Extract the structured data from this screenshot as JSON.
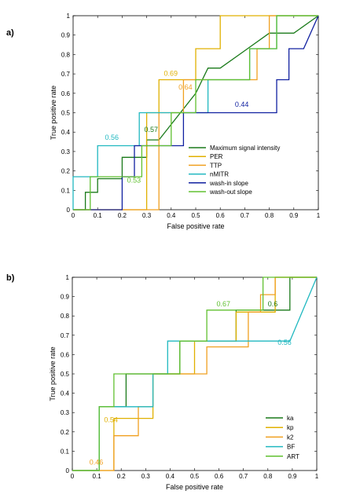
{
  "chart_data": [
    {
      "type": "line",
      "panel_label": "a)",
      "xlabel": "False positive rate",
      "ylabel": "True positive rate",
      "xlim": [
        0,
        1
      ],
      "ylim": [
        0,
        1
      ],
      "xticks": [
        "0",
        "0.1",
        "0.2",
        "0.3",
        "0.4",
        "0.5",
        "0.6",
        "0.7",
        "0.8",
        "0.9",
        "1"
      ],
      "yticks": [
        "0",
        "0.1",
        "0.2",
        "0.3",
        "0.4",
        "0.5",
        "0.6",
        "0.7",
        "0.8",
        "0.9",
        "1"
      ],
      "grid": false,
      "legend_position": "bottom-right",
      "series": [
        {
          "name": "Maximum signal intensity",
          "color": "#1a7a1a",
          "x": [
            0,
            0.05,
            0.05,
            0.1,
            0.1,
            0.2,
            0.2,
            0.3,
            0.3,
            0.35,
            0.35,
            0.5,
            0.5,
            0.55,
            0.55,
            0.6,
            0.6,
            0.7,
            0.7,
            0.8,
            0.8,
            0.9,
            0.9,
            1,
            1
          ],
          "y": [
            0,
            0,
            0.09,
            0.09,
            0.16,
            0.16,
            0.27,
            0.27,
            0.36,
            0.36,
            0.36,
            0.6,
            0.6,
            0.73,
            0.73,
            0.73,
            0.73,
            0.82,
            0.82,
            0.91,
            0.91,
            0.91,
            0.91,
            1,
            1
          ]
        },
        {
          "name": "PER",
          "color": "#e0b000",
          "x": [
            0,
            0.3,
            0.3,
            0.35,
            0.35,
            0.45,
            0.45,
            0.5,
            0.5,
            0.55,
            0.55,
            0.6,
            0.6,
            0.65,
            0.65,
            1
          ],
          "y": [
            0,
            0,
            0.5,
            0.5,
            0.67,
            0.67,
            0.67,
            0.67,
            0.83,
            0.83,
            0.83,
            0.83,
            1,
            1,
            1,
            1
          ]
        },
        {
          "name": "TTP",
          "color": "#f0a020",
          "x": [
            0,
            0.35,
            0.35,
            0.45,
            0.45,
            0.65,
            0.65,
            0.75,
            0.75,
            0.8,
            0.8,
            1
          ],
          "y": [
            0,
            0,
            0.5,
            0.5,
            0.67,
            0.67,
            0.67,
            0.67,
            0.83,
            0.83,
            1,
            1
          ]
        },
        {
          "name": "nMITR",
          "color": "#20b8c0",
          "x": [
            0,
            0,
            0.1,
            0.1,
            0.27,
            0.27,
            0.33,
            0.33,
            0.55,
            0.55,
            0.61,
            0.61,
            0.72,
            0.72,
            0.83,
            0.83,
            1
          ],
          "y": [
            0,
            0.17,
            0.17,
            0.33,
            0.33,
            0.5,
            0.5,
            0.5,
            0.5,
            0.67,
            0.67,
            0.67,
            0.67,
            0.83,
            0.83,
            1,
            1
          ]
        },
        {
          "name": "wash-in slope",
          "color": "#1020a0",
          "x": [
            0,
            0.2,
            0.2,
            0.25,
            0.25,
            0.45,
            0.45,
            0.5,
            0.5,
            0.73,
            0.73,
            0.83,
            0.83,
            0.88,
            0.88,
            0.94,
            0.94,
            1
          ],
          "y": [
            0,
            0,
            0.17,
            0.17,
            0.33,
            0.33,
            0.5,
            0.5,
            0.5,
            0.5,
            0.5,
            0.5,
            0.67,
            0.67,
            0.83,
            0.83,
            0.83,
            1
          ]
        },
        {
          "name": "wash-out slope",
          "color": "#60c030",
          "x": [
            0,
            0.07,
            0.07,
            0.17,
            0.17,
            0.28,
            0.28,
            0.4,
            0.4,
            0.5,
            0.5,
            0.6,
            0.6,
            0.72,
            0.72,
            0.83,
            0.83,
            0.94,
            0.94,
            1
          ],
          "y": [
            0,
            0,
            0.17,
            0.17,
            0.17,
            0.17,
            0.33,
            0.33,
            0.5,
            0.5,
            0.67,
            0.67,
            0.67,
            0.67,
            0.83,
            0.83,
            1,
            1,
            1,
            1
          ]
        }
      ],
      "annotations": [
        {
          "text": "0.69",
          "x": 0.37,
          "y": 0.69,
          "color": "#e0b000"
        },
        {
          "text": "0.64",
          "x": 0.43,
          "y": 0.62,
          "color": "#f0a020"
        },
        {
          "text": "0.57",
          "x": 0.29,
          "y": 0.4,
          "color": "#1a7a1a"
        },
        {
          "text": "0.56",
          "x": 0.13,
          "y": 0.36,
          "color": "#20b8c0"
        },
        {
          "text": "0.53",
          "x": 0.22,
          "y": 0.14,
          "color": "#60c030"
        },
        {
          "text": "0.44",
          "x": 0.66,
          "y": 0.53,
          "color": "#1020a0"
        }
      ]
    },
    {
      "type": "line",
      "panel_label": "b)",
      "xlabel": "False positive rate",
      "ylabel": "True positive rate",
      "xlim": [
        0,
        1
      ],
      "ylim": [
        0,
        1
      ],
      "xticks": [
        "0",
        "0.1",
        "0.2",
        "0.3",
        "0.4",
        "0.5",
        "0.6",
        "0.7",
        "0.8",
        "0.9",
        "1"
      ],
      "yticks": [
        "0",
        "0.1",
        "0.2",
        "0.3",
        "0.4",
        "0.5",
        "0.6",
        "0.7",
        "0.8",
        "0.9",
        "1"
      ],
      "grid": false,
      "legend_position": "bottom-right",
      "series": [
        {
          "name": "ka",
          "color": "#1a7a1a",
          "x": [
            0,
            0.11,
            0.11,
            0.22,
            0.22,
            0.44,
            0.44,
            0.55,
            0.55,
            0.67,
            0.67,
            0.78,
            0.78,
            0.89,
            0.89,
            1
          ],
          "y": [
            0,
            0,
            0.33,
            0.33,
            0.5,
            0.5,
            0.67,
            0.67,
            0.67,
            0.67,
            0.83,
            0.83,
            0.83,
            0.83,
            1,
            1
          ]
        },
        {
          "name": "kp",
          "color": "#e0b000",
          "x": [
            0,
            0.17,
            0.17,
            0.33,
            0.33,
            0.5,
            0.5,
            0.67,
            0.67,
            0.83,
            0.83,
            1
          ],
          "y": [
            0,
            0,
            0.27,
            0.27,
            0.5,
            0.5,
            0.67,
            0.67,
            0.82,
            0.82,
            1,
            1
          ]
        },
        {
          "name": "k2",
          "color": "#f0a020",
          "x": [
            0,
            0.17,
            0.17,
            0.27,
            0.27,
            0.33,
            0.33,
            0.5,
            0.5,
            0.55,
            0.55,
            0.72,
            0.72,
            0.77,
            0.77,
            0.83,
            0.83,
            1
          ],
          "y": [
            0,
            0,
            0.18,
            0.18,
            0.33,
            0.33,
            0.5,
            0.5,
            0.5,
            0.5,
            0.64,
            0.64,
            0.82,
            0.82,
            0.91,
            0.91,
            1,
            1
          ]
        },
        {
          "name": "BF",
          "color": "#20b8c0",
          "x": [
            0,
            0.11,
            0.11,
            0.22,
            0.22,
            0.33,
            0.33,
            0.39,
            0.39,
            0.89,
            0.89,
            1
          ],
          "y": [
            0,
            0,
            0.33,
            0.33,
            0.33,
            0.33,
            0.5,
            0.5,
            0.67,
            0.67,
            0.67,
            1
          ]
        },
        {
          "name": "ART",
          "color": "#60c030",
          "x": [
            0,
            0.11,
            0.11,
            0.17,
            0.17,
            0.28,
            0.28,
            0.44,
            0.44,
            0.55,
            0.55,
            0.72,
            0.72,
            0.78,
            0.78,
            1
          ],
          "y": [
            0,
            0,
            0.33,
            0.33,
            0.5,
            0.5,
            0.5,
            0.5,
            0.67,
            0.67,
            0.83,
            0.83,
            0.83,
            0.83,
            1,
            1
          ]
        }
      ],
      "annotations": [
        {
          "text": "0.67",
          "x": 0.59,
          "y": 0.85,
          "color": "#60c030"
        },
        {
          "text": "0.6",
          "x": 0.8,
          "y": 0.85,
          "color": "#1a7a1a"
        },
        {
          "text": "0.56",
          "x": 0.84,
          "y": 0.65,
          "color": "#20b8c0"
        },
        {
          "text": "0.54",
          "x": 0.13,
          "y": 0.25,
          "color": "#e0b000"
        },
        {
          "text": "0.46",
          "x": 0.07,
          "y": 0.03,
          "color": "#f0a020"
        }
      ]
    }
  ]
}
